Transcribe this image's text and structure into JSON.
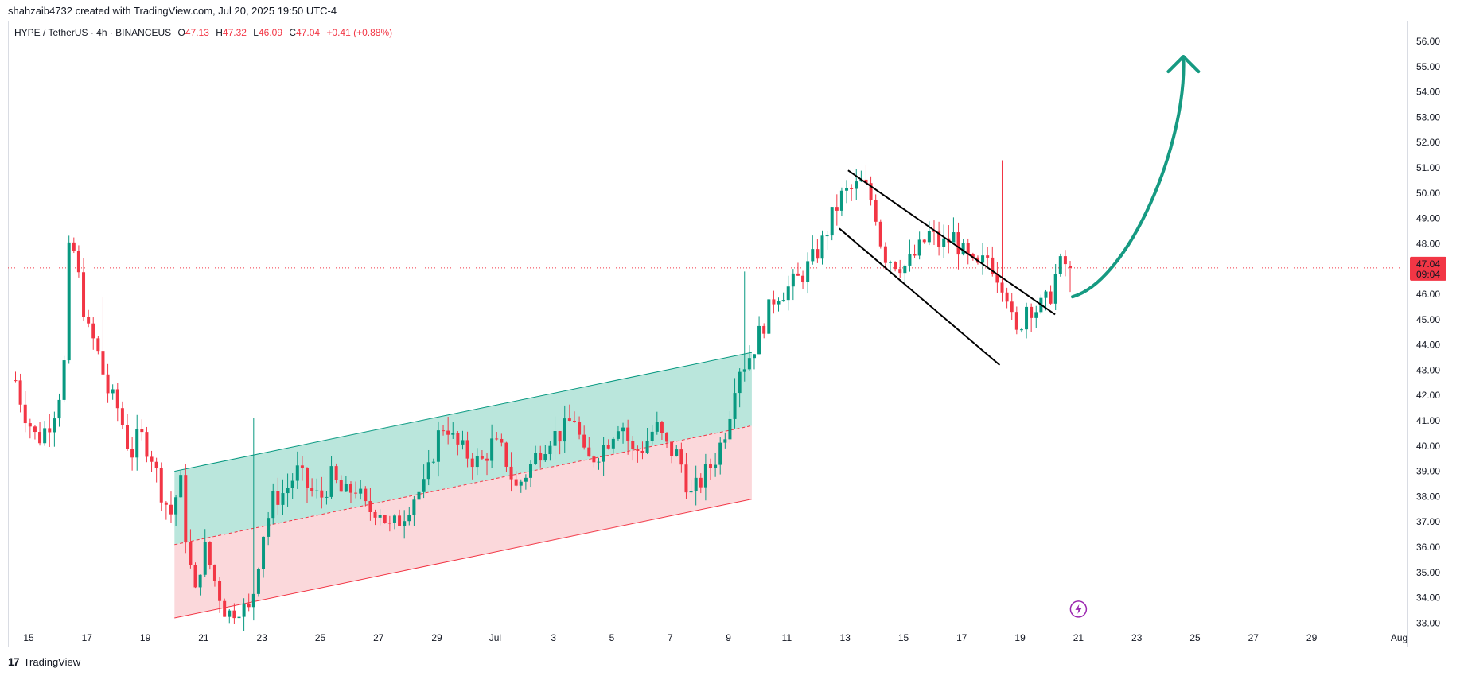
{
  "header": {
    "credit": "shahzaib4732 created with TradingView.com, Jul 20, 2025 19:50 UTC-4"
  },
  "legend": {
    "symbol": "HYPE / TetherUS · 4h · BINANCEUS",
    "open_label": "O",
    "open": "47.13",
    "high_label": "H",
    "high": "47.32",
    "low_label": "L",
    "low": "46.09",
    "close_label": "C",
    "close": "47.04",
    "change": "+0.41 (+0.88%)"
  },
  "price_tag": {
    "price": "47.04",
    "countdown": "09:04"
  },
  "footer": {
    "brand": "TradingView",
    "logo_glyph": "17"
  },
  "colors": {
    "up": "#089981",
    "down": "#f23645",
    "channel_up_fill": "#b2e3d8",
    "channel_down_fill": "#fbd4d7",
    "arrow": "#169a82"
  },
  "chart_data": {
    "type": "candlestick",
    "ylim": [
      33,
      56.5
    ],
    "y_ticks": [
      "33.00",
      "34.00",
      "35.00",
      "36.00",
      "37.00",
      "38.00",
      "39.00",
      "40.00",
      "41.00",
      "42.00",
      "43.00",
      "44.00",
      "45.00",
      "46.00",
      "47.00",
      "48.00",
      "49.00",
      "50.00",
      "51.00",
      "52.00",
      "53.00",
      "54.00",
      "55.00",
      "56.00"
    ],
    "x_ticks": [
      {
        "label": "15",
        "day": 15
      },
      {
        "label": "17",
        "day": 17
      },
      {
        "label": "19",
        "day": 19
      },
      {
        "label": "21",
        "day": 21
      },
      {
        "label": "23",
        "day": 23
      },
      {
        "label": "25",
        "day": 25
      },
      {
        "label": "27",
        "day": 27
      },
      {
        "label": "29",
        "day": 29
      },
      {
        "label": "Jul",
        "day": 31
      },
      {
        "label": "3",
        "day": 33
      },
      {
        "label": "5",
        "day": 35
      },
      {
        "label": "7",
        "day": 37
      },
      {
        "label": "9",
        "day": 39
      },
      {
        "label": "11",
        "day": 41
      },
      {
        "label": "13",
        "day": 43
      },
      {
        "label": "15",
        "day": 45
      },
      {
        "label": "17",
        "day": 47
      },
      {
        "label": "19",
        "day": 49
      },
      {
        "label": "21",
        "day": 51
      },
      {
        "label": "23",
        "day": 53
      },
      {
        "label": "25",
        "day": 55
      },
      {
        "label": "27",
        "day": 57
      },
      {
        "label": "29",
        "day": 59
      },
      {
        "label": "Aug",
        "day": 62
      }
    ],
    "current_price": 47.04,
    "anchors": [
      [
        14.55,
        42.6
      ],
      [
        14.8,
        41.5
      ],
      [
        15.3,
        40.2
      ],
      [
        15.8,
        41.1
      ],
      [
        16.2,
        42.7
      ],
      [
        16.35,
        47.5
      ],
      [
        16.5,
        48.0
      ],
      [
        16.8,
        46.1
      ],
      [
        17.0,
        44.6
      ],
      [
        17.3,
        44.0
      ],
      [
        17.7,
        42.2
      ],
      [
        18.1,
        41.4
      ],
      [
        18.5,
        39.6
      ],
      [
        18.8,
        40.5
      ],
      [
        19.2,
        39.7
      ],
      [
        19.6,
        38.0
      ],
      [
        19.9,
        37.3
      ],
      [
        20.2,
        38.7
      ],
      [
        20.4,
        36.3
      ],
      [
        20.7,
        34.0
      ],
      [
        21.0,
        36.1
      ],
      [
        21.4,
        34.6
      ],
      [
        21.8,
        33.3
      ],
      [
        22.2,
        33.7
      ],
      [
        22.6,
        33.4
      ],
      [
        23.0,
        36.4
      ],
      [
        23.4,
        37.9
      ],
      [
        23.8,
        38.2
      ],
      [
        24.2,
        39.0
      ],
      [
        24.6,
        38.3
      ],
      [
        25.0,
        37.9
      ],
      [
        25.4,
        38.8
      ],
      [
        25.8,
        38.0
      ],
      [
        26.2,
        38.4
      ],
      [
        26.6,
        37.4
      ],
      [
        27.0,
        37.6
      ],
      [
        27.4,
        36.7
      ],
      [
        27.8,
        37.2
      ],
      [
        28.2,
        38.0
      ],
      [
        28.6,
        38.4
      ],
      [
        29.0,
        40.3
      ],
      [
        29.3,
        41.0
      ],
      [
        29.6,
        40.1
      ],
      [
        30.1,
        39.6
      ],
      [
        30.5,
        39.3
      ],
      [
        30.9,
        40.1
      ],
      [
        31.3,
        39.7
      ],
      [
        31.7,
        38.3
      ],
      [
        32.1,
        39.0
      ],
      [
        32.5,
        39.8
      ],
      [
        32.9,
        40.4
      ],
      [
        33.3,
        40.5
      ],
      [
        33.7,
        41.2
      ],
      [
        34.1,
        39.3
      ],
      [
        34.5,
        39.7
      ],
      [
        34.9,
        40.3
      ],
      [
        35.3,
        41.1
      ],
      [
        35.7,
        39.7
      ],
      [
        36.1,
        40.0
      ],
      [
        36.5,
        40.8
      ],
      [
        36.9,
        39.9
      ],
      [
        37.3,
        39.6
      ],
      [
        37.7,
        38.0
      ],
      [
        38.1,
        38.7
      ],
      [
        38.5,
        39.4
      ],
      [
        38.8,
        40.3
      ],
      [
        39.0,
        41.1
      ],
      [
        39.3,
        43.1
      ],
      [
        39.6,
        43.3
      ],
      [
        39.9,
        44.0
      ],
      [
        40.3,
        45.1
      ],
      [
        40.6,
        46.0
      ],
      [
        41.0,
        46.2
      ],
      [
        41.4,
        46.6
      ],
      [
        41.8,
        47.2
      ],
      [
        42.2,
        48.0
      ],
      [
        42.6,
        49.2
      ],
      [
        42.9,
        49.9
      ],
      [
        43.2,
        50.1
      ],
      [
        43.6,
        50.4
      ],
      [
        44.0,
        49.5
      ],
      [
        44.3,
        47.6
      ],
      [
        44.7,
        47.3
      ],
      [
        45.1,
        47.1
      ],
      [
        45.5,
        47.7
      ],
      [
        45.9,
        48.4
      ],
      [
        46.3,
        47.9
      ],
      [
        46.7,
        48.3
      ],
      [
        47.1,
        47.5
      ],
      [
        47.5,
        46.9
      ],
      [
        47.9,
        47.5
      ],
      [
        48.3,
        46.6
      ],
      [
        48.5,
        46.4
      ],
      [
        48.7,
        45.0
      ],
      [
        48.9,
        44.3
      ],
      [
        49.2,
        45.6
      ],
      [
        49.6,
        45.4
      ],
      [
        50.0,
        45.8
      ],
      [
        50.3,
        47.1
      ],
      [
        50.6,
        47.2
      ],
      [
        50.75,
        47.04
      ]
    ],
    "drawings": {
      "ascending_channel": {
        "points": [
          [
            20.0,
            39.0
          ],
          [
            20.0,
            33.2
          ],
          [
            39.8,
            43.7
          ],
          [
            39.8,
            37.9
          ]
        ],
        "midline": [
          [
            20.0,
            36.1
          ],
          [
            39.8,
            40.8
          ]
        ]
      },
      "descending_channel": {
        "upper": [
          [
            43.1,
            50.9
          ],
          [
            50.2,
            45.2
          ]
        ],
        "lower": [
          [
            42.8,
            48.6
          ],
          [
            48.3,
            43.2
          ]
        ]
      },
      "target_arrow": {
        "from": [
          50.8,
          45.9
        ],
        "to": [
          54.6,
          55.4
        ]
      }
    }
  }
}
